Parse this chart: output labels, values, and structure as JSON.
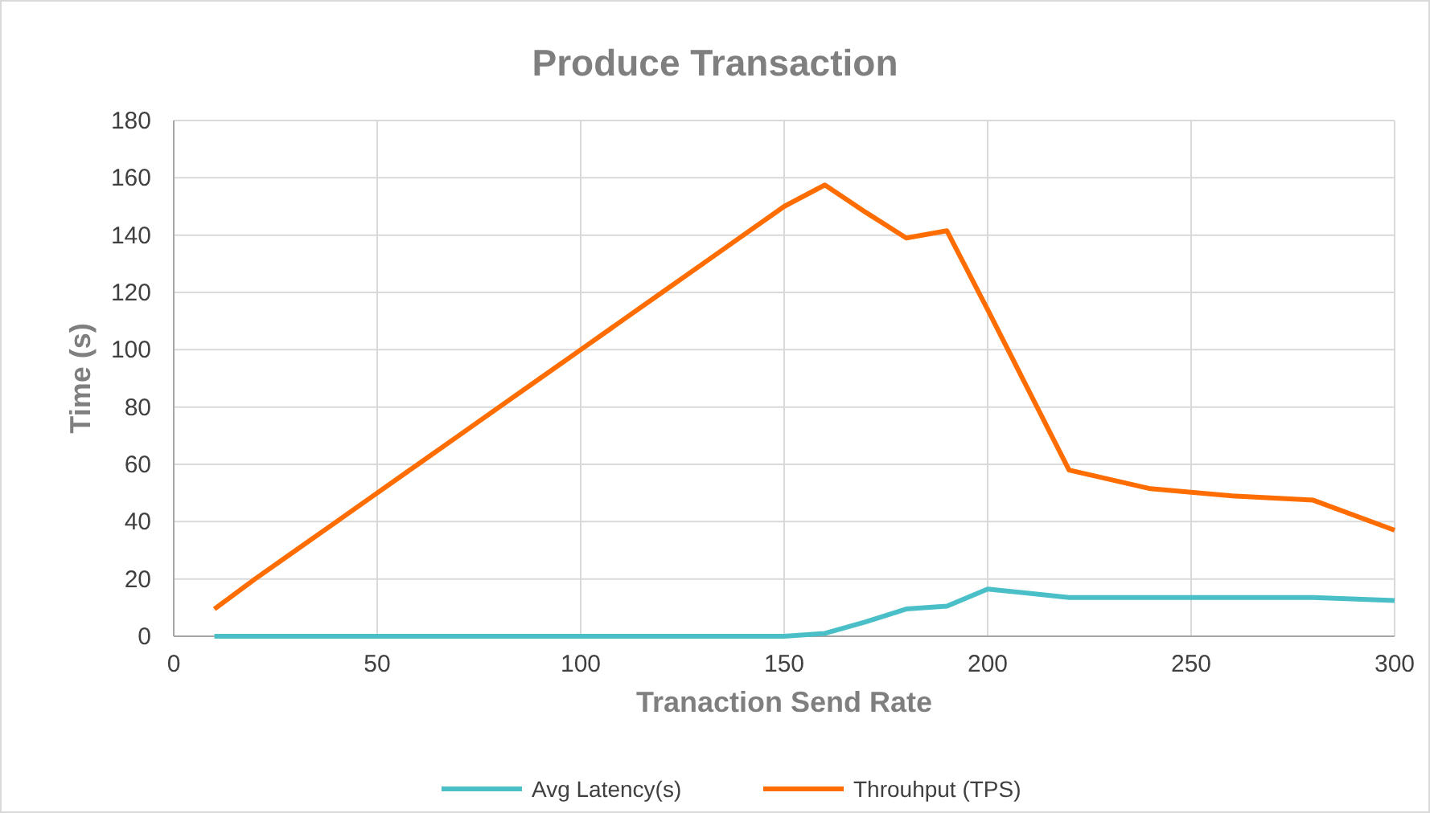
{
  "chart_data": {
    "type": "line",
    "title": "Produce Transaction",
    "xlabel": "Tranaction Send Rate",
    "ylabel": "Time (s)",
    "x": [
      10,
      20,
      30,
      40,
      50,
      60,
      70,
      80,
      90,
      100,
      110,
      120,
      130,
      140,
      150,
      160,
      170,
      180,
      190,
      200,
      220,
      240,
      260,
      280,
      300
    ],
    "series": [
      {
        "name": "Avg Latency(s)",
        "color": "#4bbfc8",
        "values": [
          0,
          0,
          0,
          0,
          0,
          0,
          0,
          0,
          0,
          0,
          0,
          0,
          0,
          0,
          0,
          1,
          5,
          9.5,
          10.5,
          16.5,
          13.5,
          13.5,
          13.5,
          13.5,
          12.5
        ]
      },
      {
        "name": "Throuhput (TPS)",
        "color": "#ff6d00",
        "values": [
          9.5,
          20,
          30,
          40,
          50,
          60,
          70,
          80,
          90,
          100,
          110,
          120,
          130,
          140,
          150,
          157.5,
          148,
          139,
          141.5,
          114,
          58,
          51.5,
          49,
          47.5,
          37
        ]
      }
    ],
    "xlim": [
      0,
      300
    ],
    "xticks": [
      0,
      50,
      100,
      150,
      200,
      250,
      300
    ],
    "ylim": [
      0,
      180
    ],
    "yticks": [
      0,
      20,
      40,
      60,
      80,
      100,
      120,
      140,
      160,
      180
    ],
    "grid": true,
    "legend": "bottom",
    "marker": "none",
    "line_style": "solid"
  }
}
